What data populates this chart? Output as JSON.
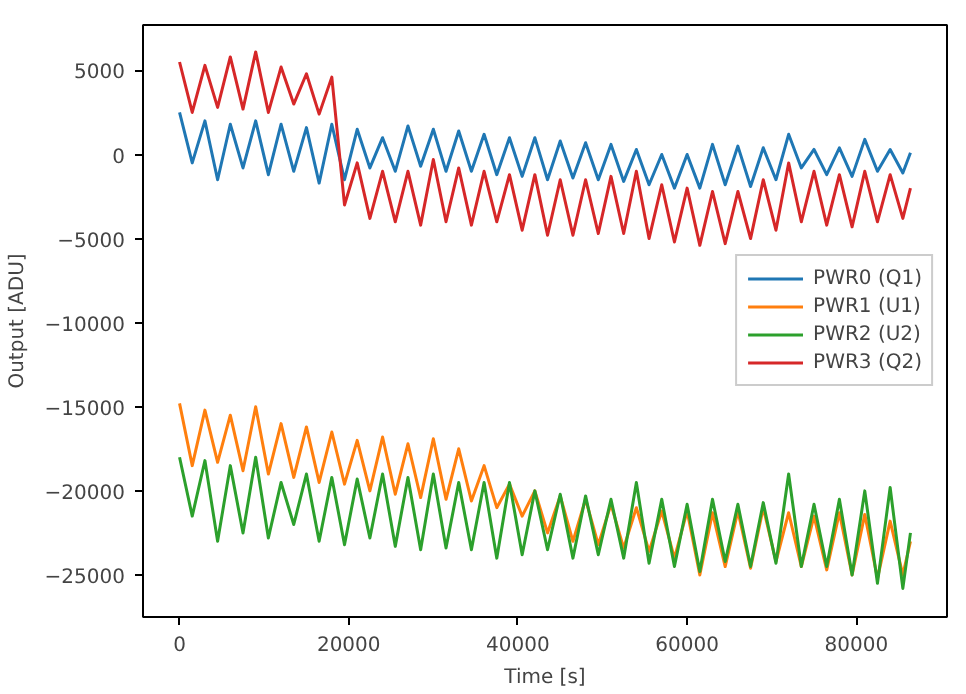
{
  "chart_data": {
    "type": "line",
    "xlabel": "Time [s]",
    "ylabel": "Output [ADU]",
    "x": [
      0,
      1500,
      3000,
      4500,
      6000,
      7500,
      9000,
      10500,
      12000,
      13500,
      15000,
      16500,
      18000,
      19500,
      21000,
      22500,
      24000,
      25500,
      27000,
      28500,
      30000,
      31500,
      33000,
      34500,
      36000,
      37500,
      39000,
      40500,
      42000,
      43500,
      45000,
      46500,
      48000,
      49500,
      51000,
      52500,
      54000,
      55500,
      57000,
      58500,
      60000,
      61500,
      63000,
      64500,
      66000,
      67500,
      69000,
      70500,
      72000,
      73500,
      75000,
      76500,
      78000,
      79500,
      81000,
      82500,
      84000,
      85500,
      86400
    ],
    "series": [
      {
        "name": "PWR0 (Q1)",
        "color": "#1f77b4",
        "values": [
          2500,
          -500,
          2000,
          -1500,
          1800,
          -800,
          2000,
          -1200,
          1800,
          -1000,
          1600,
          -1700,
          1800,
          -1500,
          1500,
          -800,
          1000,
          -1000,
          1700,
          -700,
          1500,
          -1000,
          1400,
          -1000,
          1200,
          -1200,
          1000,
          -1300,
          1000,
          -1500,
          800,
          -1400,
          700,
          -1500,
          600,
          -1600,
          300,
          -1800,
          0,
          -2000,
          0,
          -2000,
          600,
          -1800,
          500,
          -1900,
          400,
          -1500,
          1200,
          -800,
          300,
          -1200,
          400,
          -1300,
          900,
          -1000,
          300,
          -1100,
          100
        ]
      },
      {
        "name": "PWR1 (U1)",
        "color": "#ff7f0e",
        "values": [
          -14800,
          -18500,
          -15200,
          -18300,
          -15500,
          -18800,
          -15000,
          -19000,
          -16000,
          -19200,
          -16200,
          -19500,
          -16500,
          -19600,
          -17000,
          -20000,
          -16800,
          -20200,
          -17200,
          -20400,
          -16900,
          -20500,
          -17500,
          -20600,
          -18500,
          -21000,
          -19600,
          -21500,
          -20000,
          -22500,
          -20300,
          -23000,
          -20500,
          -23200,
          -20800,
          -23400,
          -21000,
          -23600,
          -21200,
          -24000,
          -21200,
          -25000,
          -21300,
          -24500,
          -21200,
          -24600,
          -21000,
          -24200,
          -21300,
          -24500,
          -21500,
          -24700,
          -21300,
          -25000,
          -21400,
          -25200,
          -21800,
          -25000,
          -23000
        ]
      },
      {
        "name": "PWR2 (U2)",
        "color": "#2ca02c",
        "values": [
          -18000,
          -21500,
          -18200,
          -23000,
          -18500,
          -22500,
          -18000,
          -22800,
          -19500,
          -22000,
          -19000,
          -23000,
          -19200,
          -23200,
          -19300,
          -22800,
          -19000,
          -23300,
          -19200,
          -23500,
          -19000,
          -23400,
          -19500,
          -23500,
          -19500,
          -24000,
          -19500,
          -23800,
          -20000,
          -23500,
          -20200,
          -24000,
          -20300,
          -23800,
          -20500,
          -24000,
          -19500,
          -24300,
          -20500,
          -24500,
          -20800,
          -24800,
          -20500,
          -24200,
          -20800,
          -24500,
          -20700,
          -24300,
          -19000,
          -24500,
          -20800,
          -24500,
          -20500,
          -25000,
          -20000,
          -25500,
          -19800,
          -25800,
          -22500
        ]
      },
      {
        "name": "PWR3 (Q2)",
        "color": "#d62728",
        "values": [
          5500,
          2500,
          5300,
          2800,
          5800,
          2700,
          6100,
          2500,
          5200,
          3000,
          4800,
          2400,
          4600,
          -3000,
          -500,
          -3800,
          -1000,
          -4000,
          -1000,
          -4200,
          -300,
          -4000,
          -800,
          -4200,
          -1000,
          -4000,
          -1200,
          -4500,
          -1200,
          -4800,
          -1500,
          -4800,
          -1500,
          -4700,
          -1300,
          -4700,
          -1000,
          -5000,
          -1800,
          -5200,
          -2000,
          -5400,
          -2200,
          -5300,
          -2200,
          -5000,
          -1500,
          -4500,
          -500,
          -4000,
          -1000,
          -4200,
          -1200,
          -4300,
          -1000,
          -4000,
          -1200,
          -3800,
          -2000
        ]
      }
    ],
    "xlim": [
      -4320,
      90720
    ],
    "ylim": [
      -27500,
      7700
    ],
    "xticks": [
      0,
      20000,
      40000,
      60000,
      80000
    ],
    "yticks": [
      -25000,
      -20000,
      -15000,
      -10000,
      -5000,
      0,
      5000
    ],
    "grid": false,
    "legend": "right",
    "marker": "none",
    "line_style": "solid"
  }
}
